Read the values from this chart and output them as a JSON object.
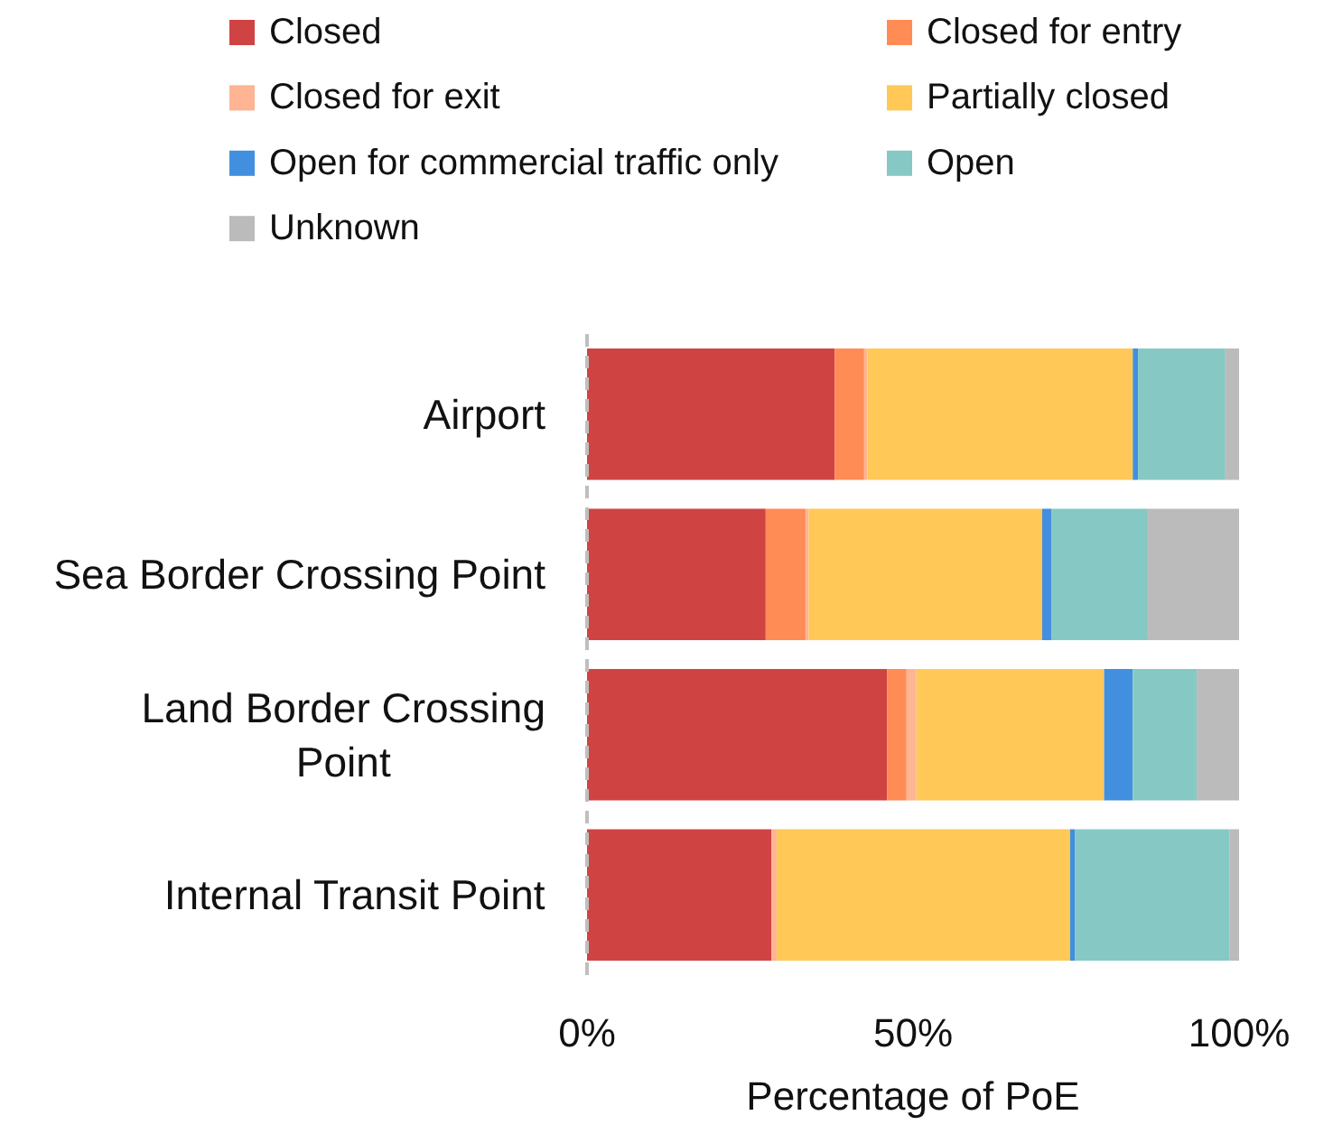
{
  "chart_data": {
    "type": "bar",
    "orientation": "horizontal",
    "stacked": true,
    "legend": "top",
    "xlabel": "Percentage of PoE",
    "categories": [
      "Airport",
      "Sea Border Crossing Point",
      "Land Border Crossing Point",
      "Internal Transit Point"
    ],
    "xlim": [
      0,
      100
    ],
    "xticks": [
      {
        "value": 0,
        "label": "0%"
      },
      {
        "value": 50,
        "label": "50%"
      },
      {
        "value": 100,
        "label": "100%"
      }
    ],
    "series": [
      {
        "name": "Closed",
        "color": "#d04343",
        "values": [
          38,
          27.4,
          46,
          28.3
        ]
      },
      {
        "name": "Closed for entry",
        "color": "#ff8c55",
        "values": [
          4.5,
          6.1,
          3,
          0
        ]
      },
      {
        "name": "Closed for exit",
        "color": "#ffb494",
        "values": [
          0.5,
          0.5,
          1.5,
          0.8
        ]
      },
      {
        "name": "Partially closed",
        "color": "#ffc857",
        "values": [
          40.7,
          35.8,
          28.8,
          45
        ]
      },
      {
        "name": "Open for commercial traffic only",
        "color": "#418fde",
        "values": [
          0.8,
          1.4,
          4.4,
          0.7
        ]
      },
      {
        "name": "Open",
        "color": "#86c9c4",
        "values": [
          13.4,
          14.8,
          9.8,
          23.7
        ]
      },
      {
        "name": "Unknown",
        "color": "#bbbbbb",
        "values": [
          2.1,
          14,
          6.5,
          1.5
        ]
      }
    ]
  }
}
